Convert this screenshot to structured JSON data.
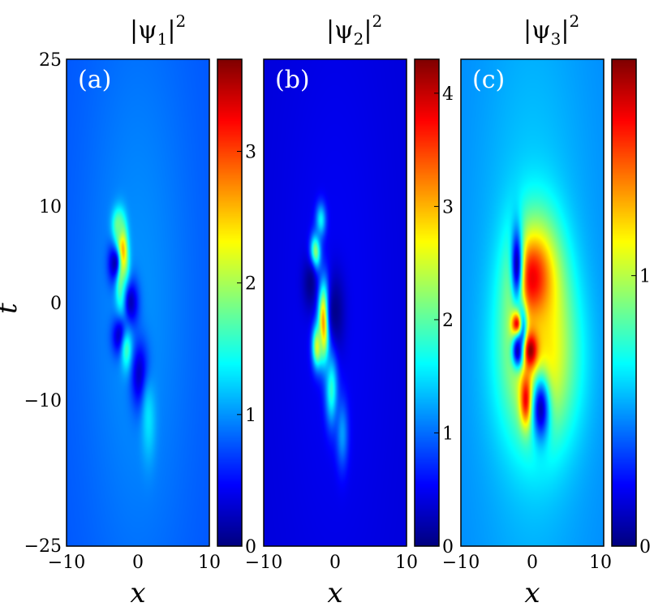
{
  "chart_data": [
    {
      "type": "heatmap",
      "panel_label": "(a)",
      "title": "|ψ1|2",
      "title_main": "|ψ",
      "title_sub": "1",
      "title_end": "|",
      "title_sup": "2",
      "xlabel": "x",
      "ylabel": "t",
      "xlim": [
        -10,
        10
      ],
      "ylim": [
        -25,
        25
      ],
      "x_ticks": [
        "−10",
        "0",
        "10"
      ],
      "y_ticks": [
        "−25",
        "−10",
        "0",
        "10",
        "25"
      ],
      "colorbar": {
        "range": [
          0,
          3.7
        ],
        "ticks": [
          "0",
          "1",
          "2",
          "3"
        ],
        "tick_values": [
          0,
          1,
          2,
          3
        ],
        "colormap": "jet"
      },
      "background_level": 0.9,
      "features": [
        {
          "x": -2.3,
          "t": 4.5,
          "value": 3.7,
          "sx": 0.55,
          "st": 2.2,
          "kind": "peak"
        },
        {
          "x": -3.2,
          "t": 4.0,
          "value": 0.1,
          "sx": 0.7,
          "st": 1.5,
          "kind": "dip"
        },
        {
          "x": -2.8,
          "t": 8.0,
          "value": 1.8,
          "sx": 0.6,
          "st": 1.2,
          "kind": "peak"
        },
        {
          "x": -2.0,
          "t": 1.0,
          "value": 2.0,
          "sx": 0.6,
          "st": 2.2,
          "kind": "peak"
        },
        {
          "x": -1.0,
          "t": 0.0,
          "value": 0.2,
          "sx": 0.8,
          "st": 1.8,
          "kind": "dip"
        },
        {
          "x": -2.5,
          "t": -3.5,
          "value": 0.15,
          "sx": 0.8,
          "st": 1.4,
          "kind": "dip"
        },
        {
          "x": -1.5,
          "t": -5.0,
          "value": 1.7,
          "sx": 0.6,
          "st": 1.5,
          "kind": "peak"
        },
        {
          "x": 0.3,
          "t": -7.5,
          "value": 0.2,
          "sx": 0.9,
          "st": 2.5,
          "kind": "dip"
        },
        {
          "x": 1.5,
          "t": -12.0,
          "value": 1.3,
          "sx": 0.7,
          "st": 3.0,
          "kind": "peak"
        }
      ]
    },
    {
      "type": "heatmap",
      "panel_label": "(b)",
      "title": "|ψ2|2",
      "title_main": "|ψ",
      "title_sub": "2",
      "title_end": "|",
      "title_sup": "2",
      "xlabel": "x",
      "ylabel": "t",
      "xlim": [
        -10,
        10
      ],
      "ylim": [
        -25,
        25
      ],
      "x_ticks": [
        "−10",
        "0",
        "10"
      ],
      "y_ticks": [],
      "colorbar": {
        "range": [
          0,
          4.3
        ],
        "ticks": [
          "0",
          "1",
          "2",
          "3",
          "4"
        ],
        "tick_values": [
          0,
          1,
          2,
          3,
          4
        ],
        "colormap": "jet"
      },
      "background_level": 0.45,
      "features": [
        {
          "x": -2.8,
          "t": 5.0,
          "value": 2.7,
          "sx": 0.5,
          "st": 1.3,
          "kind": "peak"
        },
        {
          "x": -2.0,
          "t": 8.5,
          "value": 1.6,
          "sx": 0.5,
          "st": 1.2,
          "kind": "peak"
        },
        {
          "x": -3.5,
          "t": 2.0,
          "value": 0.05,
          "sx": 0.8,
          "st": 2.0,
          "kind": "dip"
        },
        {
          "x": -1.5,
          "t": -2.0,
          "value": 4.3,
          "sx": 0.55,
          "st": 2.6,
          "kind": "peak"
        },
        {
          "x": -2.5,
          "t": -4.5,
          "value": 2.6,
          "sx": 0.5,
          "st": 1.5,
          "kind": "peak"
        },
        {
          "x": 0.0,
          "t": -1.0,
          "value": 0.05,
          "sx": 1.0,
          "st": 3.0,
          "kind": "dip"
        },
        {
          "x": -0.5,
          "t": -9.0,
          "value": 1.8,
          "sx": 0.6,
          "st": 2.5,
          "kind": "peak"
        },
        {
          "x": 1.0,
          "t": -13.5,
          "value": 1.2,
          "sx": 0.6,
          "st": 2.5,
          "kind": "peak"
        }
      ]
    },
    {
      "type": "heatmap",
      "panel_label": "(c)",
      "title": "|ψ3|2",
      "title_main": "|ψ",
      "title_sub": "3",
      "title_end": "|",
      "title_sup": "2",
      "xlabel": "x",
      "ylabel": "t",
      "xlim": [
        -10,
        10
      ],
      "ylim": [
        -25,
        25
      ],
      "x_ticks": [
        "−10",
        "0",
        "10"
      ],
      "y_ticks": [],
      "colorbar": {
        "range": [
          0,
          1.8
        ],
        "ticks": [
          "0",
          "1"
        ],
        "tick_values": [
          0,
          1
        ],
        "colormap": "jet"
      },
      "background_level": 0.55,
      "features": [
        {
          "x": 0.5,
          "t": 1.5,
          "value": 1.45,
          "sx": 2.5,
          "st": 5.0,
          "kind": "peak"
        },
        {
          "x": 1.0,
          "t": -6.0,
          "value": 1.2,
          "sx": 3.5,
          "st": 6.0,
          "kind": "peak"
        },
        {
          "x": 0.0,
          "t": 2.5,
          "value": 1.6,
          "sx": 1.2,
          "st": 2.0,
          "kind": "peak"
        },
        {
          "x": -2.2,
          "t": 4.0,
          "value": 0.1,
          "sx": 0.6,
          "st": 3.0,
          "kind": "dip"
        },
        {
          "x": -1.5,
          "t": -3.0,
          "value": 0.1,
          "sx": 0.5,
          "st": 1.8,
          "kind": "dip"
        },
        {
          "x": -2.2,
          "t": -2.3,
          "value": 1.7,
          "sx": 0.5,
          "st": 0.9,
          "kind": "peak"
        },
        {
          "x": -2.0,
          "t": -5.0,
          "value": 0.05,
          "sx": 0.6,
          "st": 1.2,
          "kind": "dip"
        },
        {
          "x": -0.2,
          "t": -5.0,
          "value": 1.8,
          "sx": 0.7,
          "st": 1.3,
          "kind": "peak"
        },
        {
          "x": -0.8,
          "t": -10.0,
          "value": 1.7,
          "sx": 0.6,
          "st": 1.8,
          "kind": "peak"
        },
        {
          "x": 1.2,
          "t": -11.0,
          "value": 0.1,
          "sx": 0.9,
          "st": 2.5,
          "kind": "dip"
        }
      ]
    }
  ]
}
